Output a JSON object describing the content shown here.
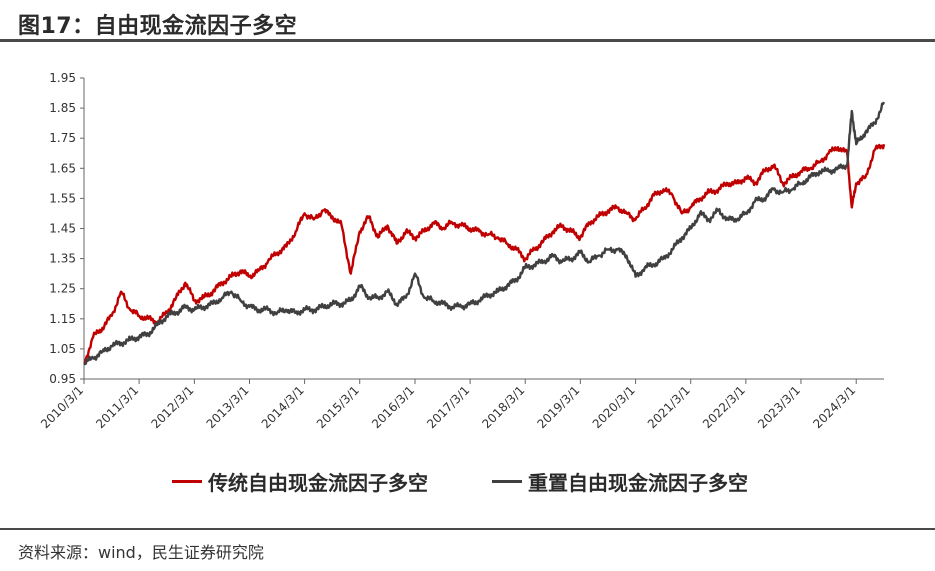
{
  "header": {
    "title": "图17：自由现金流因子多空"
  },
  "source_note": "资料来源：wind，民生证券研究院",
  "colors": {
    "red": "#c00000",
    "dark": "#404040",
    "rule": "#4a4a4a"
  },
  "chart_data": {
    "type": "line",
    "title": "",
    "xlabel": "",
    "ylabel": "",
    "ylim": [
      0.95,
      1.95
    ],
    "yticks": [
      "0.95",
      "1.05",
      "1.15",
      "1.25",
      "1.35",
      "1.45",
      "1.55",
      "1.65",
      "1.75",
      "1.85",
      "1.95"
    ],
    "xlim": [
      "2010-03-01",
      "2024-09-01"
    ],
    "xticks": [
      "2010/3/1",
      "2011/3/1",
      "2012/3/1",
      "2013/3/1",
      "2014/3/1",
      "2015/3/1",
      "2016/3/1",
      "2017/3/1",
      "2018/3/1",
      "2019/3/1",
      "2020/3/1",
      "2021/3/1",
      "2022/3/1",
      "2023/3/1",
      "2024/3/1"
    ],
    "grid": false,
    "legend_position": "bottom",
    "series": [
      {
        "name": "传统自由现金流因子多空",
        "color": "#c00000",
        "x": [
          "2010-03-01",
          "2010-05-01",
          "2010-07-01",
          "2010-09-01",
          "2010-11-01",
          "2011-01-01",
          "2011-03-01",
          "2011-05-01",
          "2011-07-01",
          "2011-09-01",
          "2011-11-01",
          "2012-01-01",
          "2012-03-01",
          "2012-05-01",
          "2012-07-01",
          "2012-09-01",
          "2012-11-01",
          "2013-01-01",
          "2013-03-01",
          "2013-05-01",
          "2013-07-01",
          "2013-09-01",
          "2013-11-01",
          "2014-01-01",
          "2014-03-01",
          "2014-05-01",
          "2014-07-01",
          "2014-09-01",
          "2014-11-01",
          "2015-01-01",
          "2015-03-01",
          "2015-05-01",
          "2015-07-01",
          "2015-09-01",
          "2015-11-01",
          "2016-01-01",
          "2016-03-01",
          "2016-05-01",
          "2016-07-01",
          "2016-09-01",
          "2016-11-01",
          "2017-01-01",
          "2017-03-01",
          "2017-05-01",
          "2017-07-01",
          "2017-09-01",
          "2017-11-01",
          "2018-01-01",
          "2018-03-01",
          "2018-05-01",
          "2018-07-01",
          "2018-09-01",
          "2018-11-01",
          "2019-01-01",
          "2019-03-01",
          "2019-05-01",
          "2019-07-01",
          "2019-09-01",
          "2019-11-01",
          "2020-01-01",
          "2020-03-01",
          "2020-05-01",
          "2020-07-01",
          "2020-09-01",
          "2020-11-01",
          "2021-01-01",
          "2021-03-01",
          "2021-05-01",
          "2021-07-01",
          "2021-09-01",
          "2021-11-01",
          "2022-01-01",
          "2022-03-01",
          "2022-05-01",
          "2022-07-01",
          "2022-09-01",
          "2022-11-01",
          "2023-01-01",
          "2023-03-01",
          "2023-05-01",
          "2023-07-01",
          "2023-09-01",
          "2023-11-01",
          "2024-01-01",
          "2024-02-01",
          "2024-03-01",
          "2024-05-01",
          "2024-07-01",
          "2024-09-01"
        ],
        "values": [
          1.0,
          1.09,
          1.12,
          1.16,
          1.24,
          1.18,
          1.16,
          1.15,
          1.14,
          1.17,
          1.22,
          1.27,
          1.21,
          1.22,
          1.24,
          1.27,
          1.29,
          1.31,
          1.29,
          1.31,
          1.34,
          1.37,
          1.39,
          1.44,
          1.5,
          1.48,
          1.51,
          1.49,
          1.46,
          1.3,
          1.44,
          1.49,
          1.42,
          1.46,
          1.4,
          1.44,
          1.42,
          1.44,
          1.47,
          1.45,
          1.47,
          1.46,
          1.45,
          1.44,
          1.43,
          1.42,
          1.4,
          1.38,
          1.35,
          1.38,
          1.41,
          1.44,
          1.46,
          1.44,
          1.42,
          1.47,
          1.49,
          1.51,
          1.52,
          1.5,
          1.48,
          1.52,
          1.56,
          1.58,
          1.56,
          1.5,
          1.52,
          1.55,
          1.57,
          1.58,
          1.6,
          1.6,
          1.62,
          1.6,
          1.64,
          1.66,
          1.6,
          1.62,
          1.64,
          1.65,
          1.67,
          1.7,
          1.72,
          1.7,
          1.52,
          1.6,
          1.62,
          1.71,
          1.73
        ]
      },
      {
        "name": "重置自由现金流因子多空",
        "color": "#404040",
        "x": [
          "2010-03-01",
          "2010-05-01",
          "2010-07-01",
          "2010-09-01",
          "2010-11-01",
          "2011-01-01",
          "2011-03-01",
          "2011-05-01",
          "2011-07-01",
          "2011-09-01",
          "2011-11-01",
          "2012-01-01",
          "2012-03-01",
          "2012-05-01",
          "2012-07-01",
          "2012-09-01",
          "2012-11-01",
          "2013-01-01",
          "2013-03-01",
          "2013-05-01",
          "2013-07-01",
          "2013-09-01",
          "2013-11-01",
          "2014-01-01",
          "2014-03-01",
          "2014-05-01",
          "2014-07-01",
          "2014-09-01",
          "2014-11-01",
          "2015-01-01",
          "2015-03-01",
          "2015-05-01",
          "2015-07-01",
          "2015-09-01",
          "2015-11-01",
          "2016-01-01",
          "2016-03-01",
          "2016-05-01",
          "2016-07-01",
          "2016-09-01",
          "2016-11-01",
          "2017-01-01",
          "2017-03-01",
          "2017-05-01",
          "2017-07-01",
          "2017-09-01",
          "2017-11-01",
          "2018-01-01",
          "2018-03-01",
          "2018-05-01",
          "2018-07-01",
          "2018-09-01",
          "2018-11-01",
          "2019-01-01",
          "2019-03-01",
          "2019-05-01",
          "2019-07-01",
          "2019-09-01",
          "2019-11-01",
          "2020-01-01",
          "2020-03-01",
          "2020-05-01",
          "2020-07-01",
          "2020-09-01",
          "2020-11-01",
          "2021-01-01",
          "2021-03-01",
          "2021-05-01",
          "2021-07-01",
          "2021-09-01",
          "2021-11-01",
          "2022-01-01",
          "2022-03-01",
          "2022-05-01",
          "2022-07-01",
          "2022-09-01",
          "2022-11-01",
          "2023-01-01",
          "2023-03-01",
          "2023-05-01",
          "2023-07-01",
          "2023-09-01",
          "2023-11-01",
          "2024-01-01",
          "2024-02-01",
          "2024-03-01",
          "2024-05-01",
          "2024-07-01",
          "2024-09-01"
        ],
        "values": [
          1.0,
          1.02,
          1.04,
          1.06,
          1.07,
          1.08,
          1.09,
          1.1,
          1.13,
          1.16,
          1.17,
          1.19,
          1.18,
          1.19,
          1.2,
          1.22,
          1.24,
          1.21,
          1.19,
          1.18,
          1.18,
          1.17,
          1.18,
          1.17,
          1.18,
          1.18,
          1.19,
          1.2,
          1.2,
          1.21,
          1.26,
          1.22,
          1.22,
          1.24,
          1.2,
          1.22,
          1.3,
          1.22,
          1.21,
          1.2,
          1.19,
          1.19,
          1.2,
          1.21,
          1.23,
          1.24,
          1.26,
          1.28,
          1.32,
          1.33,
          1.34,
          1.36,
          1.34,
          1.35,
          1.37,
          1.34,
          1.36,
          1.38,
          1.38,
          1.36,
          1.29,
          1.32,
          1.33,
          1.35,
          1.38,
          1.42,
          1.45,
          1.5,
          1.48,
          1.51,
          1.48,
          1.48,
          1.5,
          1.54,
          1.55,
          1.58,
          1.57,
          1.58,
          1.6,
          1.62,
          1.64,
          1.64,
          1.65,
          1.66,
          1.84,
          1.73,
          1.77,
          1.8,
          1.87
        ]
      }
    ]
  }
}
